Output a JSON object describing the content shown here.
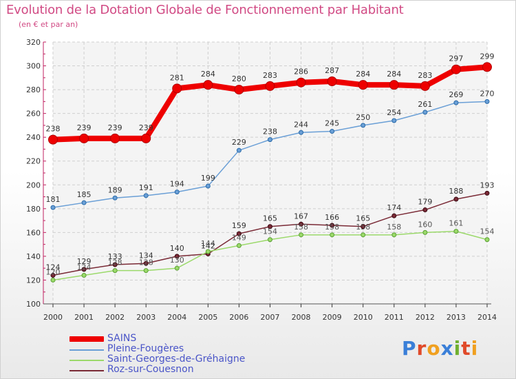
{
  "title": "Evolution de la Dotation Globale de Fonctionnement par Habitant",
  "subtitle": "(en € et par an)",
  "logo_text": "Proxiti",
  "chart_data": {
    "type": "line",
    "title": "Evolution de la Dotation Globale de Fonctionnement par Habitant",
    "ylabel": "(en € et par an)",
    "xlabel": "",
    "x": [
      2000,
      2001,
      2002,
      2003,
      2004,
      2005,
      2006,
      2007,
      2008,
      2009,
      2010,
      2011,
      2012,
      2013,
      2014
    ],
    "ylim": [
      100,
      320
    ],
    "yticks": [
      100,
      120,
      140,
      160,
      180,
      200,
      220,
      240,
      260,
      280,
      300,
      320
    ],
    "grid": true,
    "legend_position": "bottom-left",
    "series": [
      {
        "name": "SAINS",
        "color": "#ee0000",
        "values": [
          238,
          239,
          239,
          239,
          281,
          284,
          280,
          283,
          286,
          287,
          284,
          284,
          283,
          297,
          299
        ]
      },
      {
        "name": "Pleine-Fougères",
        "color": "#6a9fd6",
        "values": [
          181,
          185,
          189,
          191,
          194,
          199,
          229,
          238,
          244,
          245,
          250,
          254,
          261,
          269,
          270
        ]
      },
      {
        "name": "Saint-Georges-de-Gréhaigne",
        "color": "#9bd96a",
        "values": [
          120,
          124,
          128,
          128,
          130,
          144,
          149,
          154,
          158,
          158,
          158,
          158,
          160,
          161,
          154
        ]
      },
      {
        "name": "Roz-sur-Couesnon",
        "color": "#7a2a36",
        "values": [
          124,
          129,
          133,
          134,
          140,
          142,
          159,
          165,
          167,
          166,
          165,
          174,
          179,
          188,
          193
        ]
      }
    ]
  }
}
